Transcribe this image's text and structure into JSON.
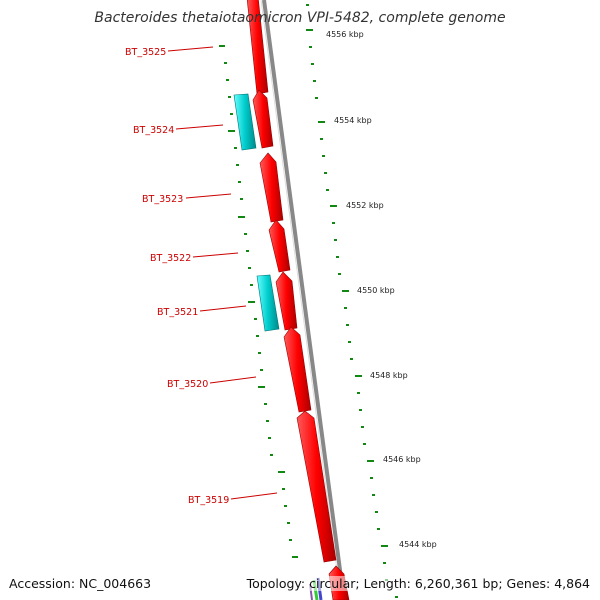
{
  "title": "Bacteroides thetaiotaomicron VPI-5482, complete genome",
  "footer": {
    "accession": "Accession: NC_004663",
    "summary": "Topology: circular; Length: 6,260,361 bp; Genes: 4,864"
  },
  "colors": {
    "forward_gene": "#ff0000",
    "reverse_gene": "#00cccc",
    "backbone": "#888888",
    "tick": "#118811",
    "label": "#cc0000"
  },
  "scale_labels": [
    "4556 kbp",
    "4554 kbp",
    "4552 kbp",
    "4550 kbp",
    "4548 kbp",
    "4546 kbp",
    "4544 kbp"
  ],
  "genes": [
    "BT_3525",
    "BT_3524",
    "BT_3523",
    "BT_3522",
    "BT_3521",
    "BT_3520",
    "BT_3519"
  ]
}
